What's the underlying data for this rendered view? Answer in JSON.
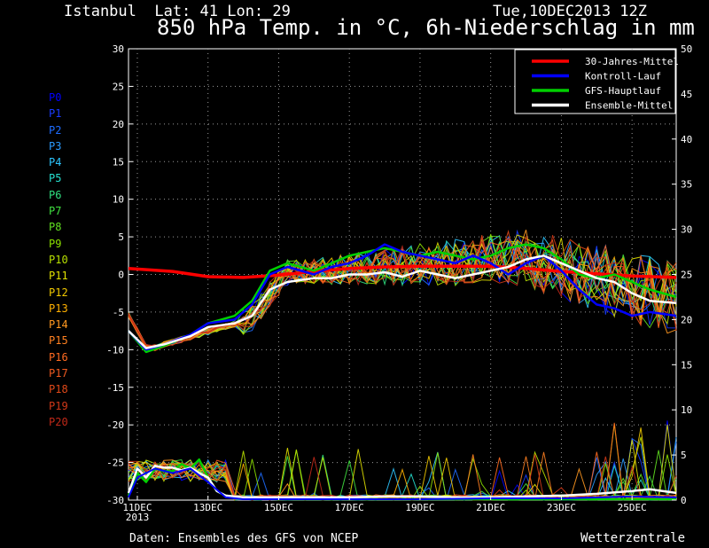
{
  "header": {
    "location": "Istanbul  Lat: 41 Lon: 29",
    "run": "Tue,10DEC2013 12Z",
    "title": "850 hPa Temp. in °C, 6h-Niederschlag in mm"
  },
  "footer": {
    "source": "Daten: Ensembles des GFS von NCEP",
    "brand": "Wetterzentrale"
  },
  "members": [
    {
      "label": "P0",
      "color": "#0000ff"
    },
    {
      "label": "P1",
      "color": "#1a3cff"
    },
    {
      "label": "P2",
      "color": "#1e6cff"
    },
    {
      "label": "P3",
      "color": "#2b9cff"
    },
    {
      "label": "P4",
      "color": "#2cc6ff"
    },
    {
      "label": "P5",
      "color": "#26e0d0"
    },
    {
      "label": "P6",
      "color": "#30e080"
    },
    {
      "label": "P7",
      "color": "#40e040"
    },
    {
      "label": "P8",
      "color": "#60e020"
    },
    {
      "label": "P9",
      "color": "#8ce000"
    },
    {
      "label": "P10",
      "color": "#b8e000"
    },
    {
      "label": "P11",
      "color": "#e0e000"
    },
    {
      "label": "P12",
      "color": "#f0c800"
    },
    {
      "label": "P13",
      "color": "#ffb000"
    },
    {
      "label": "P14",
      "color": "#ff9820"
    },
    {
      "label": "P15",
      "color": "#ff8020"
    },
    {
      "label": "P16",
      "color": "#ff6a20"
    },
    {
      "label": "P17",
      "color": "#f05a20"
    },
    {
      "label": "P18",
      "color": "#e04818"
    },
    {
      "label": "P19",
      "color": "#d03818"
    },
    {
      "label": "P20",
      "color": "#c02818"
    }
  ],
  "chart_data": {
    "type": "line",
    "title": "850 hPa Temp. in °C, 6h-Niederschlag in mm",
    "x_label_unit": "days from 11DEC2013 00Z",
    "x_range": [
      -0.25,
      15.25
    ],
    "x_ticks": [
      {
        "x": 0,
        "label": "11DEC",
        "sub": "2013"
      },
      {
        "x": 2,
        "label": "13DEC"
      },
      {
        "x": 4,
        "label": "15DEC"
      },
      {
        "x": 6,
        "label": "17DEC"
      },
      {
        "x": 8,
        "label": "19DEC"
      },
      {
        "x": 10,
        "label": "21DEC"
      },
      {
        "x": 12,
        "label": "23DEC"
      },
      {
        "x": 14,
        "label": "25DEC"
      }
    ],
    "y_left": {
      "unit": "°C",
      "min": -30,
      "max": 30,
      "step": 5
    },
    "y_right": {
      "unit": "mm",
      "min": 0,
      "max": 50,
      "step": 5
    },
    "legend": [
      {
        "name": "30-Jahres-Mittel",
        "color": "#ff0000"
      },
      {
        "name": "Kontroll-Lauf",
        "color": "#0000ff"
      },
      {
        "name": "GFS-Hauptlauf",
        "color": "#00d000"
      },
      {
        "name": "Ensemble-Mittel",
        "color": "#ffffff"
      }
    ],
    "temp_series": [
      {
        "name": "30-Jahres-Mittel",
        "color": "#ff0000",
        "width": 3.5,
        "x": [
          -0.25,
          1,
          2,
          3,
          4,
          5,
          6,
          7,
          8,
          9,
          10,
          11,
          12,
          13,
          14,
          15.25
        ],
        "y": [
          0.8,
          0.4,
          -0.3,
          -0.4,
          -0.1,
          0.4,
          0.8,
          1.0,
          1.1,
          1.1,
          1.1,
          0.8,
          0.4,
          0.1,
          -0.2,
          -0.4
        ]
      },
      {
        "name": "GFS-Hauptlauf",
        "color": "#00d000",
        "width": 2.5,
        "x": [
          -0.25,
          0.25,
          0.75,
          1.5,
          2,
          2.75,
          3.25,
          3.75,
          4.25,
          5,
          5.5,
          6,
          6.5,
          7,
          7.5,
          8,
          8.5,
          9,
          9.5,
          10,
          10.5,
          11,
          11.5,
          12,
          12.5,
          13,
          13.5,
          14,
          14.5,
          15.25
        ],
        "y": [
          -7.5,
          -10.3,
          -9.5,
          -8.0,
          -6.5,
          -5.5,
          -3.5,
          0.5,
          1.5,
          0.5,
          1.5,
          2.5,
          3.0,
          3.5,
          3.0,
          2.5,
          3.0,
          2.5,
          2.0,
          2.5,
          3.5,
          4.0,
          3.5,
          2.0,
          0.0,
          -0.5,
          0.0,
          -1.0,
          -2.0,
          -3.0
        ]
      },
      {
        "name": "Kontroll-Lauf",
        "color": "#0000ff",
        "width": 2.5,
        "x": [
          -0.25,
          0.25,
          0.75,
          1.5,
          2,
          2.75,
          3.25,
          3.75,
          4.25,
          5,
          5.5,
          6,
          6.5,
          7,
          7.5,
          8,
          8.5,
          9,
          9.5,
          10,
          10.5,
          11,
          11.5,
          12,
          12.5,
          13,
          13.5,
          14,
          14.5,
          15.25
        ],
        "y": [
          -7.5,
          -10.0,
          -9.3,
          -8.0,
          -6.5,
          -6.0,
          -4.0,
          0.0,
          1.0,
          0.0,
          1.0,
          1.5,
          2.5,
          4.0,
          3.0,
          2.5,
          2.0,
          1.5,
          2.5,
          1.5,
          0.0,
          1.5,
          2.5,
          0.5,
          -2.0,
          -4.0,
          -4.5,
          -5.5,
          -5.0,
          -5.5
        ]
      },
      {
        "name": "Ensemble-Mittel",
        "color": "#ffffff",
        "width": 2.5,
        "x": [
          -0.25,
          0.25,
          0.75,
          1.5,
          2,
          2.75,
          3.25,
          3.75,
          4.25,
          5,
          5.5,
          6,
          6.5,
          7,
          7.5,
          8,
          8.5,
          9,
          9.5,
          10,
          10.5,
          11,
          11.5,
          12,
          12.5,
          13,
          13.5,
          14,
          14.5,
          15.25
        ],
        "y": [
          -7.5,
          -9.8,
          -9.3,
          -8.2,
          -7.0,
          -6.5,
          -5.5,
          -2.0,
          -1.0,
          -0.5,
          -0.5,
          0.0,
          0.0,
          0.3,
          -0.3,
          0.5,
          0.0,
          -0.5,
          0.0,
          0.5,
          1.0,
          2.0,
          2.5,
          1.5,
          0.5,
          -0.5,
          -1.0,
          -2.5,
          -3.5,
          -3.8
        ]
      }
    ],
    "precip_series": [
      {
        "name": "GFS-Hauptlauf",
        "color": "#00d000",
        "width": 2.5,
        "x": [
          -0.25,
          0,
          0.25,
          0.5,
          0.75,
          1,
          1.25,
          1.5,
          1.75,
          2,
          2.25,
          2.5,
          3,
          4,
          5,
          6,
          7,
          8,
          9,
          10,
          11,
          12,
          13,
          14,
          15.25
        ],
        "y": [
          0.5,
          3.0,
          2.0,
          3.5,
          3.2,
          3.2,
          4.0,
          3.5,
          4.5,
          2.5,
          1.0,
          0.5,
          0.2,
          0.1,
          0.1,
          0.1,
          0.1,
          0.1,
          0.1,
          0.1,
          0.1,
          0.1,
          0.1,
          0.1,
          0.1
        ]
      },
      {
        "name": "Ensemble-Mittel",
        "color": "#ffffff",
        "width": 2.5,
        "x": [
          -0.25,
          0,
          0.25,
          0.5,
          0.75,
          1,
          1.25,
          1.5,
          1.75,
          2,
          2.25,
          2.5,
          3,
          4,
          5,
          6,
          7,
          8,
          9,
          10,
          11,
          12,
          13,
          14,
          14.5,
          15.25
        ],
        "y": [
          0.8,
          3.5,
          2.5,
          3.8,
          3.6,
          3.6,
          3.3,
          3.6,
          3.0,
          2.5,
          1.0,
          0.5,
          0.3,
          0.3,
          0.3,
          0.3,
          0.4,
          0.4,
          0.3,
          0.3,
          0.4,
          0.5,
          0.7,
          1.0,
          1.2,
          0.8
        ]
      },
      {
        "name": "Kontroll-Lauf",
        "color": "#0000ff",
        "width": 2,
        "x": [
          -0.25,
          0,
          0.5,
          1,
          1.5,
          2,
          2.5,
          3,
          4,
          6,
          8,
          10,
          12,
          14,
          15.25
        ],
        "y": [
          0.3,
          2.5,
          3.5,
          3.0,
          3.5,
          2.0,
          0.3,
          0.1,
          0.1,
          0.1,
          0.1,
          0.2,
          0.2,
          0.4,
          0.3
        ]
      }
    ]
  }
}
